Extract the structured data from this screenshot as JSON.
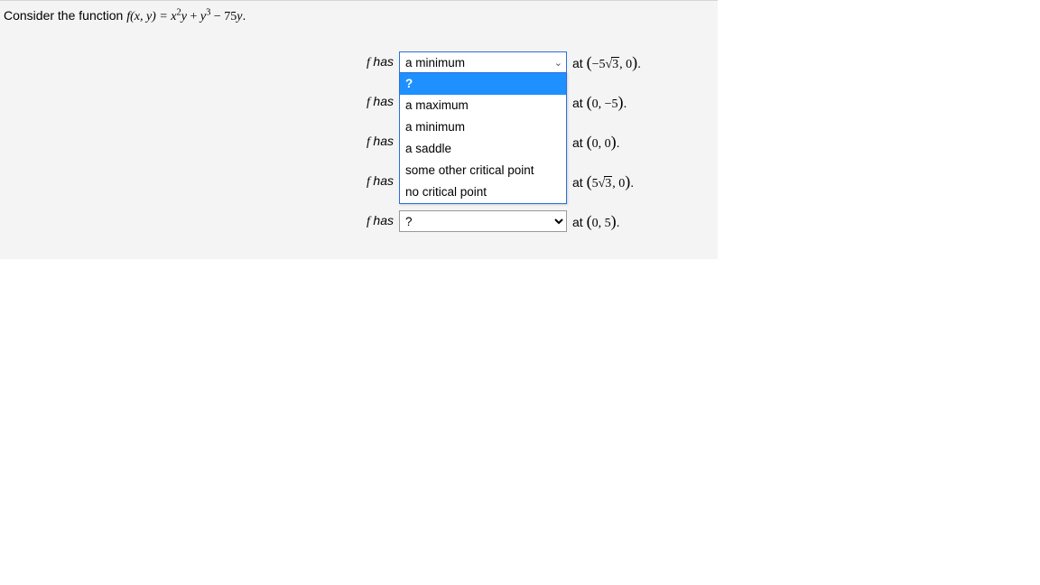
{
  "prompt": {
    "lead": "Consider the function ",
    "func_open": "f(x, y) = ",
    "expr_x2y": "x",
    "expr_x_exp": "2",
    "expr_y1": "y",
    "plus": " + ",
    "expr_y3": "y",
    "expr_y_exp": "3",
    "minus": " − ",
    "coef": "75",
    "expr_yfinal": "y",
    "period": "."
  },
  "labels": {
    "fhas": "f has",
    "at": "at"
  },
  "rows": [
    {
      "id": "r1",
      "selected": "a minimum",
      "point_text": "(−5√3, 0)",
      "point_html": "neg5root3_0"
    },
    {
      "id": "r2",
      "selected": "?",
      "point_text": "(0, −5)",
      "point_html": "zero_neg5"
    },
    {
      "id": "r3",
      "selected": "?",
      "point_text": "(0, 0)",
      "point_html": "zero_zero"
    },
    {
      "id": "r4",
      "selected": "?",
      "point_text": "(5√3, 0)",
      "point_html": "pos5root3_0"
    },
    {
      "id": "r5",
      "selected": "?",
      "point_text": "(0, 5)",
      "point_html": "zero_5"
    }
  ],
  "dropdown_options": [
    "?",
    "a maximum",
    "a minimum",
    "a saddle",
    "some other critical point",
    "no critical point"
  ],
  "open_dropdown_row": "r1",
  "open_dropdown_highlight": "?",
  "colors": {
    "page_bg": "#f4f4f4",
    "border_top": "#d6d6d6",
    "select_border": "#999999",
    "highlight_bg": "#1e90ff",
    "highlight_fg": "#ffffff",
    "focus_border": "#2a6fdb"
  }
}
